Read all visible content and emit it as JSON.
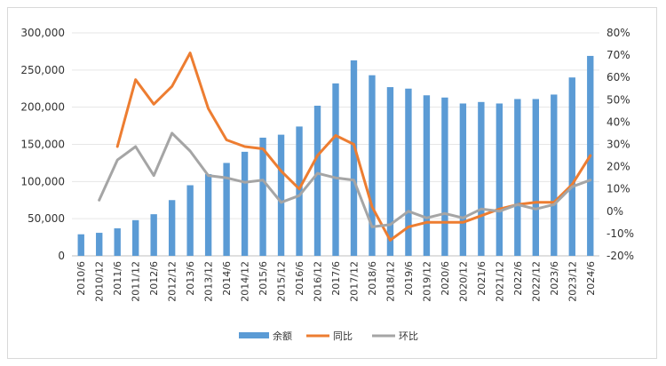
{
  "chart_data": {
    "type": "bar",
    "categories": [
      "2010/6",
      "2010/12",
      "2011/6",
      "2011/12",
      "2012/6",
      "2012/12",
      "2013/6",
      "2013/12",
      "2014/6",
      "2014/12",
      "2015/6",
      "2015/12",
      "2016/6",
      "2016/12",
      "2017/6",
      "2017/12",
      "2018/6",
      "2018/12",
      "2019/6",
      "2019/12",
      "2020/6",
      "2020/12",
      "2021/6",
      "2021/12",
      "2022/6",
      "2022/12",
      "2023/6",
      "2023/12",
      "2024/6"
    ],
    "series": [
      {
        "name": "余额",
        "type": "bar",
        "axis": "left",
        "color": "#5b9bd5",
        "values": [
          29000,
          31000,
          37000,
          48000,
          56000,
          75000,
          95000,
          110000,
          125000,
          140000,
          159000,
          163000,
          174000,
          202000,
          232000,
          263000,
          243000,
          227000,
          225000,
          216000,
          213000,
          205000,
          207000,
          205000,
          211000,
          211000,
          217000,
          240000,
          269000
        ]
      },
      {
        "name": "同比",
        "type": "line",
        "axis": "right",
        "color": "#ed7d31",
        "values": [
          null,
          null,
          29,
          59,
          48,
          56,
          71,
          46,
          32,
          29,
          28,
          18,
          10,
          25,
          34,
          30,
          2,
          -13,
          -7,
          -5,
          -5,
          -5,
          -2,
          1,
          3,
          4,
          4,
          12,
          25
        ]
      },
      {
        "name": "环比",
        "type": "line",
        "axis": "right",
        "color": "#a5a5a5",
        "values": [
          null,
          5,
          23,
          29,
          16,
          35,
          27,
          16,
          15,
          13,
          14,
          4,
          7,
          17,
          15,
          14,
          -7,
          -6,
          0,
          -3,
          -1,
          -3,
          1,
          0,
          3,
          1,
          3,
          11,
          14
        ]
      }
    ],
    "y_left": {
      "min": 0,
      "max": 300000,
      "step": 50000,
      "tick_labels": [
        "0",
        "50,000",
        "100,000",
        "150,000",
        "200,000",
        "250,000",
        "300,000"
      ]
    },
    "y_right": {
      "min": -20,
      "max": 80,
      "step": 10,
      "tick_labels": [
        "-20%",
        "-10%",
        "0%",
        "10%",
        "20%",
        "30%",
        "40%",
        "50%",
        "60%",
        "70%",
        "80%"
      ]
    },
    "gridlines": true,
    "legend_position": "bottom",
    "legend": [
      {
        "label": "余额",
        "color": "#5b9bd5"
      },
      {
        "label": "同比",
        "color": "#ed7d31"
      },
      {
        "label": "环比",
        "color": "#a5a5a5"
      }
    ]
  }
}
